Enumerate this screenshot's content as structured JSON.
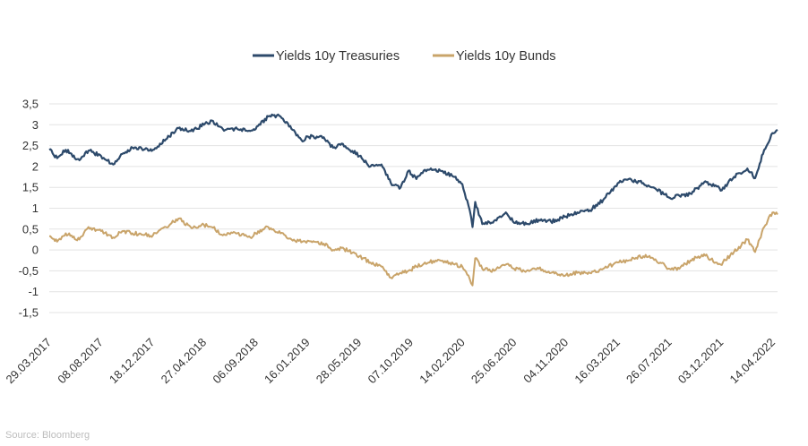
{
  "source": "Source: Bloomberg",
  "chart_data": {
    "type": "line",
    "title": "",
    "xlabel": "",
    "ylabel": "",
    "ylim": [
      -1.5,
      3.5
    ],
    "xlim": [
      "2017-03-29",
      "2022-04-27"
    ],
    "yticks": [
      "3,5",
      "3",
      "2,5",
      "2",
      "1,5",
      "1",
      "0,5",
      "0",
      "-0,5",
      "-1",
      "-1,5"
    ],
    "xticks": [
      "29.03.2017",
      "08.08.2017",
      "18.12.2017",
      "27.04.2018",
      "06.09.2018",
      "16.01.2019",
      "28.05.2019",
      "07.10.2019",
      "14.02.2020",
      "25.06.2020",
      "04.11.2020",
      "16.03.2021",
      "26.07.2021",
      "03.12.2021",
      "14.04.2022"
    ],
    "grid": "horizontal",
    "legend_position": "top-center",
    "series": [
      {
        "name": "Yields 10y Treasuries",
        "color": "#2d4a6b",
        "points": [
          [
            "2017-03-29",
            2.4
          ],
          [
            "2017-04-18",
            2.2
          ],
          [
            "2017-05-10",
            2.4
          ],
          [
            "2017-06-14",
            2.15
          ],
          [
            "2017-07-07",
            2.38
          ],
          [
            "2017-08-08",
            2.25
          ],
          [
            "2017-09-08",
            2.05
          ],
          [
            "2017-10-01",
            2.3
          ],
          [
            "2017-10-27",
            2.45
          ],
          [
            "2017-12-18",
            2.4
          ],
          [
            "2018-01-20",
            2.65
          ],
          [
            "2018-02-21",
            2.92
          ],
          [
            "2018-03-24",
            2.85
          ],
          [
            "2018-04-27",
            3.0
          ],
          [
            "2018-05-17",
            3.1
          ],
          [
            "2018-06-14",
            2.9
          ],
          [
            "2018-07-21",
            2.9
          ],
          [
            "2018-08-23",
            2.85
          ],
          [
            "2018-09-06",
            2.9
          ],
          [
            "2018-10-08",
            3.2
          ],
          [
            "2018-11-08",
            3.2
          ],
          [
            "2018-12-06",
            2.9
          ],
          [
            "2019-01-03",
            2.6
          ],
          [
            "2019-01-16",
            2.72
          ],
          [
            "2019-02-26",
            2.7
          ],
          [
            "2019-03-22",
            2.45
          ],
          [
            "2019-04-13",
            2.55
          ],
          [
            "2019-05-28",
            2.25
          ],
          [
            "2019-06-25",
            2.0
          ],
          [
            "2019-07-23",
            2.05
          ],
          [
            "2019-08-19",
            1.55
          ],
          [
            "2019-09-10",
            1.5
          ],
          [
            "2019-09-30",
            1.9
          ],
          [
            "2019-10-20",
            1.7
          ],
          [
            "2019-11-11",
            1.92
          ],
          [
            "2019-12-20",
            1.9
          ],
          [
            "2020-01-25",
            1.75
          ],
          [
            "2020-02-14",
            1.58
          ],
          [
            "2020-03-04",
            0.95
          ],
          [
            "2020-03-11",
            0.55
          ],
          [
            "2020-03-18",
            1.15
          ],
          [
            "2020-04-05",
            0.62
          ],
          [
            "2020-05-05",
            0.7
          ],
          [
            "2020-06-04",
            0.9
          ],
          [
            "2020-06-25",
            0.65
          ],
          [
            "2020-07-27",
            0.62
          ],
          [
            "2020-08-27",
            0.72
          ],
          [
            "2020-09-27",
            0.68
          ],
          [
            "2020-11-04",
            0.8
          ],
          [
            "2020-12-03",
            0.9
          ],
          [
            "2021-01-04",
            0.95
          ],
          [
            "2021-02-07",
            1.2
          ],
          [
            "2021-03-16",
            1.6
          ],
          [
            "2021-04-13",
            1.7
          ],
          [
            "2021-05-20",
            1.6
          ],
          [
            "2021-06-14",
            1.5
          ],
          [
            "2021-07-26",
            1.25
          ],
          [
            "2021-08-20",
            1.3
          ],
          [
            "2021-09-17",
            1.35
          ],
          [
            "2021-10-22",
            1.62
          ],
          [
            "2021-11-20",
            1.55
          ],
          [
            "2021-12-03",
            1.42
          ],
          [
            "2022-01-06",
            1.75
          ],
          [
            "2022-02-09",
            1.95
          ],
          [
            "2022-03-01",
            1.72
          ],
          [
            "2022-03-24",
            2.4
          ],
          [
            "2022-04-14",
            2.8
          ],
          [
            "2022-04-27",
            2.88
          ]
        ]
      },
      {
        "name": "Yields 10y Bunds",
        "color": "#c9a46a",
        "points": [
          [
            "2017-03-29",
            0.33
          ],
          [
            "2017-04-18",
            0.2
          ],
          [
            "2017-05-10",
            0.4
          ],
          [
            "2017-06-14",
            0.25
          ],
          [
            "2017-07-07",
            0.55
          ],
          [
            "2017-08-08",
            0.45
          ],
          [
            "2017-09-08",
            0.3
          ],
          [
            "2017-10-01",
            0.45
          ],
          [
            "2017-10-27",
            0.4
          ],
          [
            "2017-12-18",
            0.35
          ],
          [
            "2018-01-20",
            0.55
          ],
          [
            "2018-02-21",
            0.75
          ],
          [
            "2018-03-24",
            0.55
          ],
          [
            "2018-04-27",
            0.6
          ],
          [
            "2018-05-17",
            0.55
          ],
          [
            "2018-06-14",
            0.35
          ],
          [
            "2018-07-21",
            0.4
          ],
          [
            "2018-08-23",
            0.3
          ],
          [
            "2018-09-06",
            0.4
          ],
          [
            "2018-10-08",
            0.55
          ],
          [
            "2018-11-08",
            0.4
          ],
          [
            "2018-12-06",
            0.25
          ],
          [
            "2019-01-03",
            0.2
          ],
          [
            "2019-01-16",
            0.22
          ],
          [
            "2019-02-26",
            0.15
          ],
          [
            "2019-03-22",
            0.0
          ],
          [
            "2019-04-13",
            0.05
          ],
          [
            "2019-05-28",
            -0.15
          ],
          [
            "2019-06-25",
            -0.3
          ],
          [
            "2019-07-23",
            -0.4
          ],
          [
            "2019-08-19",
            -0.68
          ],
          [
            "2019-09-10",
            -0.55
          ],
          [
            "2019-09-30",
            -0.5
          ],
          [
            "2019-10-20",
            -0.4
          ],
          [
            "2019-11-11",
            -0.3
          ],
          [
            "2019-12-20",
            -0.25
          ],
          [
            "2020-01-25",
            -0.35
          ],
          [
            "2020-02-14",
            -0.4
          ],
          [
            "2020-03-04",
            -0.7
          ],
          [
            "2020-03-11",
            -0.85
          ],
          [
            "2020-03-18",
            -0.2
          ],
          [
            "2020-04-05",
            -0.45
          ],
          [
            "2020-05-05",
            -0.5
          ],
          [
            "2020-06-04",
            -0.35
          ],
          [
            "2020-06-25",
            -0.45
          ],
          [
            "2020-07-27",
            -0.5
          ],
          [
            "2020-08-27",
            -0.45
          ],
          [
            "2020-09-27",
            -0.55
          ],
          [
            "2020-11-04",
            -0.6
          ],
          [
            "2020-12-03",
            -0.55
          ],
          [
            "2021-01-04",
            -0.55
          ],
          [
            "2021-02-07",
            -0.45
          ],
          [
            "2021-03-16",
            -0.3
          ],
          [
            "2021-04-13",
            -0.25
          ],
          [
            "2021-05-20",
            -0.15
          ],
          [
            "2021-06-14",
            -0.2
          ],
          [
            "2021-07-26",
            -0.45
          ],
          [
            "2021-08-20",
            -0.45
          ],
          [
            "2021-09-17",
            -0.25
          ],
          [
            "2021-10-22",
            -0.1
          ],
          [
            "2021-11-20",
            -0.3
          ],
          [
            "2021-12-03",
            -0.35
          ],
          [
            "2022-01-06",
            -0.05
          ],
          [
            "2022-02-09",
            0.25
          ],
          [
            "2022-03-01",
            -0.05
          ],
          [
            "2022-03-24",
            0.55
          ],
          [
            "2022-04-14",
            0.9
          ],
          [
            "2022-04-27",
            0.85
          ]
        ]
      }
    ]
  }
}
